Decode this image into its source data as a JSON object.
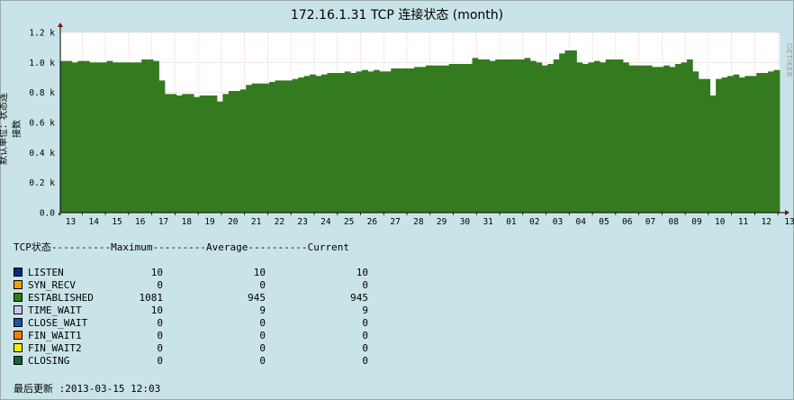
{
  "title": "172.16.1.31 TCP 连接状态 (month)",
  "watermark": "RRDTOOL / TOBI OETIKER",
  "colors": {
    "background": "#c9e4e8",
    "plot_background": "#ffffff",
    "established": "#347a1f",
    "grid": "#e0a0a0"
  },
  "chart_data": {
    "type": "area",
    "title": "172.16.1.31 TCP 连接状态 (month)",
    "ylabel": "默认单位：状态连接数",
    "ylim": [
      0,
      1.2
    ],
    "yticks": [
      0.0,
      0.2,
      0.4,
      0.6,
      0.8,
      1.0,
      1.2
    ],
    "ytick_labels": [
      "0.0",
      "0.2 k",
      "0.4 k",
      "0.6 k",
      "0.8 k",
      "1.0 k",
      "1.2 k"
    ],
    "xtick_labels": [
      "13",
      "14",
      "15",
      "16",
      "17",
      "18",
      "19",
      "20",
      "21",
      "22",
      "23",
      "24",
      "25",
      "26",
      "27",
      "28",
      "29",
      "30",
      "31",
      "01",
      "02",
      "03",
      "04",
      "05",
      "06",
      "07",
      "08",
      "09",
      "10",
      "11",
      "12",
      "13",
      "14",
      "15"
    ],
    "grid": true,
    "series": [
      {
        "name": "ESTABLISHED",
        "color": "#347a1f",
        "values": [
          1.01,
          1.01,
          1.0,
          1.01,
          1.01,
          1.0,
          1.0,
          1.0,
          1.01,
          1.0,
          1.0,
          1.0,
          1.0,
          1.0,
          1.02,
          1.02,
          1.01,
          0.88,
          0.79,
          0.79,
          0.78,
          0.79,
          0.79,
          0.77,
          0.78,
          0.78,
          0.78,
          0.74,
          0.79,
          0.81,
          0.81,
          0.82,
          0.85,
          0.86,
          0.86,
          0.86,
          0.87,
          0.88,
          0.88,
          0.88,
          0.89,
          0.9,
          0.91,
          0.92,
          0.91,
          0.92,
          0.93,
          0.93,
          0.93,
          0.94,
          0.93,
          0.94,
          0.95,
          0.94,
          0.95,
          0.94,
          0.94,
          0.96,
          0.96,
          0.96,
          0.96,
          0.97,
          0.97,
          0.98,
          0.98,
          0.98,
          0.98,
          0.99,
          0.99,
          0.99,
          0.99,
          1.03,
          1.02,
          1.02,
          1.01,
          1.02,
          1.02,
          1.02,
          1.02,
          1.02,
          1.03,
          1.01,
          1.0,
          0.98,
          0.99,
          1.02,
          1.06,
          1.08,
          1.08,
          1.0,
          0.99,
          1.0,
          1.01,
          1.0,
          1.02,
          1.02,
          1.02,
          1.0,
          0.98,
          0.98,
          0.98,
          0.98,
          0.97,
          0.97,
          0.98,
          0.97,
          0.99,
          1.0,
          1.02,
          0.94,
          0.89,
          0.89,
          0.78,
          0.89,
          0.9,
          0.91,
          0.92,
          0.9,
          0.91,
          0.91,
          0.93,
          0.93,
          0.94,
          0.95
        ]
      }
    ]
  },
  "legend": {
    "header": "TCP状态----------Maximum---------Average----------Current",
    "rows": [
      {
        "name": "LISTEN",
        "color": "#0a2a78",
        "max": "10",
        "avg": "10",
        "cur": "10"
      },
      {
        "name": "SYN_RECV",
        "color": "#f0a000",
        "max": "0",
        "avg": "0",
        "cur": "0"
      },
      {
        "name": "ESTABLISHED",
        "color": "#347a1f",
        "max": "1081",
        "avg": "945",
        "cur": "945"
      },
      {
        "name": "TIME_WAIT",
        "color": "#c8c8f0",
        "max": "10",
        "avg": "9",
        "cur": "9"
      },
      {
        "name": "CLOSE_WAIT",
        "color": "#2050a0",
        "max": "0",
        "avg": "0",
        "cur": "0"
      },
      {
        "name": "FIN_WAIT1",
        "color": "#f08000",
        "max": "0",
        "avg": "0",
        "cur": "0"
      },
      {
        "name": "FIN_WAIT2",
        "color": "#f0f000",
        "max": "0",
        "avg": "0",
        "cur": "0"
      },
      {
        "name": "CLOSING",
        "color": "#1a6040",
        "max": "0",
        "avg": "0",
        "cur": "0"
      }
    ]
  },
  "last_update": "最后更新 :2013-03-15 12:03"
}
